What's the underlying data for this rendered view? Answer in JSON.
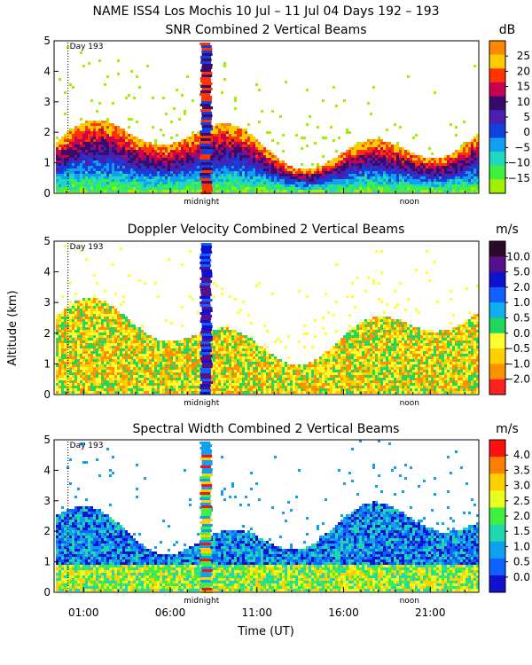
{
  "header": {
    "title": "NAME ISS4 Los Mochis  10 Jul – 11 Jul 04 Days 192 – 193"
  },
  "shared": {
    "xlabel": "Time (UT)",
    "ylabel": "Altitude (km)",
    "x_tick_labels": [
      "01:00",
      "06:00",
      "11:00",
      "16:00",
      "21:00"
    ],
    "x_tick_values_h": [
      1,
      6,
      11,
      16,
      21
    ],
    "xlim_h": [
      -0.7,
      23.8
    ],
    "midnight_label": "midnight",
    "midnight_h": 7.8,
    "noon_label": "noon",
    "noon_h": 19.8,
    "day_label": "Day 193",
    "day_boundary_h": 0.1
  },
  "chart_data": [
    {
      "type": "heatmap",
      "title": "SNR Combined 2 Vertical Beams",
      "unit": "dB",
      "ylim": [
        0,
        5
      ],
      "y_ticks": [
        "0",
        "1",
        "2",
        "3",
        "4",
        "5"
      ],
      "colorbar": {
        "labels": [
          "25",
          "20",
          "15",
          "10",
          "5",
          "0",
          "−5",
          "−10",
          "−15"
        ],
        "colors": [
          "#ff8800",
          "#ffcc00",
          "#ff3300",
          "#c80050",
          "#3a0a6a",
          "#4a1fb0",
          "#1040e0",
          "#10a0f0",
          "#20d8c0",
          "#40f040",
          "#a0f000"
        ]
      },
      "profile": {
        "top_base": 1.6,
        "top_var": 0.45,
        "sparse_top": 5.0
      }
    },
    {
      "type": "heatmap",
      "title": "Doppler Velocity Combined 2 Vertical Beams",
      "unit": "m/s",
      "ylim": [
        0,
        5
      ],
      "y_ticks": [
        "0",
        "1",
        "2",
        "3",
        "4",
        "5"
      ],
      "colorbar": {
        "labels": [
          "10.0",
          "5.0",
          "2.0",
          "1.0",
          "0.5",
          "0.0",
          "−0.5",
          "−1.0",
          "−2.0"
        ],
        "colors": [
          "#2a0a2a",
          "#5a0f8a",
          "#1010d0",
          "#1060ff",
          "#10b0f0",
          "#20d860",
          "#ffff30",
          "#ffd000",
          "#ff9000",
          "#ff2020"
        ]
      },
      "profile": {
        "top_base": 2.0,
        "top_var": 0.6,
        "sparse_top": 5.0
      }
    },
    {
      "type": "heatmap",
      "title": "Spectral Width Combined 2 Vertical Beams",
      "unit": "m/s",
      "ylim": [
        0,
        5
      ],
      "y_ticks": [
        "0",
        "1",
        "2",
        "3",
        "4",
        "5"
      ],
      "colorbar": {
        "labels": [
          "4.0",
          "3.5",
          "3.0",
          "2.5",
          "2.0",
          "1.5",
          "1.0",
          "0.5",
          "0.0"
        ],
        "colors": [
          "#ff1010",
          "#ff8000",
          "#ffd000",
          "#e8ff20",
          "#40f040",
          "#20d8b0",
          "#10a0f0",
          "#1060ff",
          "#1010d0"
        ]
      },
      "profile": {
        "top_base": 2.0,
        "top_var": 0.5,
        "sparse_top": 5.0
      }
    }
  ]
}
